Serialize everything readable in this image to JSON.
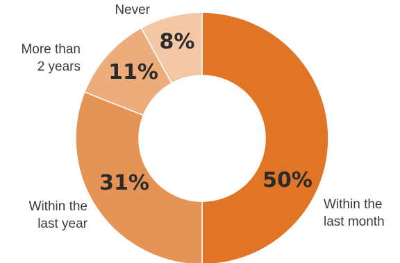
{
  "chart_data": {
    "type": "pie",
    "donut": true,
    "title": "",
    "slices": [
      {
        "label_lines": [
          "Within the",
          "last month"
        ],
        "value": 50,
        "display": "50%",
        "color": "#e07525"
      },
      {
        "label_lines": [
          "Within the",
          "last  year"
        ],
        "value": 31,
        "display": "31%",
        "color": "#e69356"
      },
      {
        "label_lines": [
          "More than",
          "2 years"
        ],
        "value": 11,
        "display": "11%",
        "color": "#ecac7c"
      },
      {
        "label_lines": [
          "Never"
        ],
        "value": 8,
        "display": "8%",
        "color": "#f2c7a6"
      }
    ]
  }
}
